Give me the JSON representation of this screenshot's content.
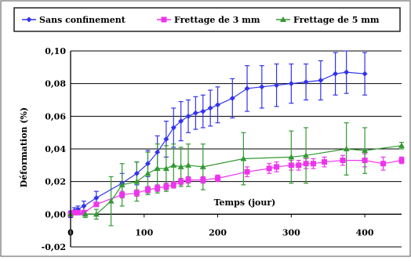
{
  "chart_data": {
    "type": "line",
    "title": "",
    "xlabel": "Temps (jour)",
    "ylabel": "Déformation (%)",
    "xlim": [
      0,
      450
    ],
    "ylim": [
      -0.02,
      0.1
    ],
    "x_ticks": [
      0,
      100,
      200,
      300,
      400
    ],
    "x_tick_labels": [
      "0",
      "100",
      "200",
      "300",
      "400"
    ],
    "y_ticks": [
      -0.02,
      0,
      0.02,
      0.04,
      0.06,
      0.08,
      0.1
    ],
    "y_tick_labels": [
      "-0,02",
      "0,00",
      "0,02",
      "0,04",
      "0,06",
      "0,08",
      "0,10"
    ],
    "grid": "horizontal",
    "legend_position": "top",
    "series": [
      {
        "name": "Sans confinement",
        "color": "#3333ee",
        "marker": "diamond",
        "x": [
          0,
          5,
          10,
          18,
          35,
          70,
          90,
          105,
          118,
          130,
          140,
          150,
          160,
          170,
          180,
          190,
          200,
          220,
          240,
          260,
          280,
          300,
          320,
          340,
          360,
          375,
          400
        ],
        "y": [
          0.0,
          0.002,
          0.003,
          0.005,
          0.01,
          0.019,
          0.025,
          0.031,
          0.038,
          0.046,
          0.053,
          0.057,
          0.06,
          0.062,
          0.063,
          0.065,
          0.067,
          0.071,
          0.077,
          0.078,
          0.079,
          0.08,
          0.081,
          0.082,
          0.086,
          0.087,
          0.086
        ],
        "error": [
          0.002,
          0.002,
          0.002,
          0.003,
          0.004,
          0.006,
          0.007,
          0.008,
          0.01,
          0.011,
          0.012,
          0.012,
          0.01,
          0.01,
          0.01,
          0.011,
          0.011,
          0.012,
          0.014,
          0.013,
          0.013,
          0.012,
          0.011,
          0.012,
          0.013,
          0.013,
          0.013
        ]
      },
      {
        "name": "Frettage de 3 mm",
        "color": "#ee33ee",
        "marker": "square",
        "x": [
          0,
          5,
          10,
          18,
          35,
          70,
          90,
          105,
          118,
          130,
          140,
          150,
          160,
          180,
          200,
          240,
          270,
          280,
          300,
          310,
          320,
          330,
          345,
          370,
          400,
          425,
          450
        ],
        "y": [
          0.0,
          0.001,
          0.001,
          0.001,
          0.006,
          0.012,
          0.013,
          0.015,
          0.016,
          0.017,
          0.018,
          0.02,
          0.021,
          0.021,
          0.022,
          0.026,
          0.028,
          0.029,
          0.03,
          0.03,
          0.031,
          0.031,
          0.032,
          0.033,
          0.033,
          0.031,
          0.033
        ],
        "error": [
          0.001,
          0.001,
          0.001,
          0.001,
          0.001,
          0.002,
          0.002,
          0.002,
          0.002,
          0.002,
          0.002,
          0.002,
          0.002,
          0.002,
          0.002,
          0.003,
          0.003,
          0.003,
          0.003,
          0.003,
          0.003,
          0.003,
          0.003,
          0.003,
          0.004,
          0.004,
          0.002
        ]
      },
      {
        "name": "Frettage de 5 mm",
        "color": "#339933",
        "marker": "triangle",
        "x": [
          0,
          20,
          35,
          55,
          70,
          90,
          105,
          118,
          130,
          140,
          150,
          160,
          180,
          235,
          300,
          320,
          375,
          400,
          450
        ],
        "y": [
          0.0,
          0.0,
          0.0,
          0.008,
          0.018,
          0.02,
          0.025,
          0.028,
          0.028,
          0.03,
          0.029,
          0.03,
          0.029,
          0.034,
          0.035,
          0.036,
          0.04,
          0.039,
          0.042
        ],
        "error": [
          0.001,
          0.002,
          0.003,
          0.015,
          0.013,
          0.012,
          0.013,
          0.015,
          0.014,
          0.013,
          0.012,
          0.013,
          0.014,
          0.016,
          0.016,
          0.017,
          0.016,
          0.014,
          0.002
        ]
      }
    ]
  }
}
